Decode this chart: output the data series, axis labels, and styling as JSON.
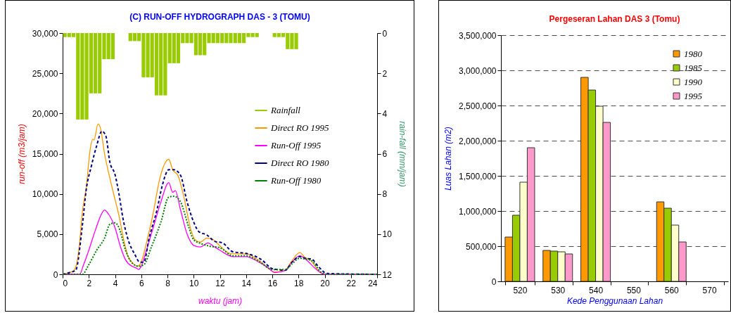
{
  "chart_data": [
    {
      "type": "line",
      "title": "(C)  RUN-OFF HYDROGRAPH DAS - 3 (TOMU)",
      "xlabel": "waktu (jam)",
      "ylabel": "run-off (m3/jam)",
      "y2label": "rain-fall (mm/jam)",
      "xlim": [
        0,
        24
      ],
      "xticks": [
        0,
        2,
        4,
        6,
        8,
        10,
        12,
        14,
        16,
        18,
        20,
        22,
        24
      ],
      "ylim": [
        0,
        30000
      ],
      "yticks": [
        {
          "value": 0,
          "label": "0"
        },
        {
          "value": 5000,
          "label": "5,000"
        },
        {
          "value": 10000,
          "label": "10,000"
        },
        {
          "value": 15000,
          "label": "15,000"
        },
        {
          "value": 20000,
          "label": "20,000"
        },
        {
          "value": 25000,
          "label": "25,000"
        },
        {
          "value": 30000,
          "label": "30,000"
        }
      ],
      "y2lim": [
        12,
        0
      ],
      "y2ticks": [
        0,
        2,
        4,
        6,
        8,
        10,
        12
      ],
      "legend": "right",
      "marker": "none",
      "series": [
        {
          "name": "Rainfall",
          "type": "bar",
          "axis": "y2",
          "color": "#99cc00",
          "x": [
            0.17,
            0.5,
            0.83,
            1.17,
            1.5,
            1.83,
            2.17,
            2.5,
            2.83,
            3.17,
            3.5,
            3.83,
            5.17,
            5.5,
            5.83,
            6.17,
            6.5,
            6.83,
            7.17,
            7.5,
            7.83,
            8.17,
            8.5,
            8.83,
            9.17,
            9.5,
            9.83,
            10.17,
            10.5,
            10.83,
            11.17,
            11.5,
            11.83,
            12.17,
            12.5,
            12.83,
            13.17,
            13.5,
            13.83,
            14.17,
            14.5,
            14.83,
            16.17,
            16.5,
            16.83,
            17.17,
            17.5,
            17.83
          ],
          "values": [
            0.2,
            0.2,
            0.2,
            4.3,
            4.3,
            4.3,
            3.0,
            3.0,
            3.0,
            1.3,
            1.3,
            1.3,
            0.4,
            0.4,
            0.4,
            2.2,
            2.2,
            2.2,
            3.1,
            3.1,
            3.1,
            1.5,
            1.5,
            1.5,
            0.5,
            0.5,
            0.5,
            1.1,
            1.1,
            1.1,
            0.5,
            0.5,
            0.5,
            0.5,
            0.5,
            0.5,
            0.5,
            0.5,
            0.5,
            0.2,
            0.2,
            0.2,
            0.2,
            0.2,
            0.2,
            0.8,
            0.8,
            0.8
          ]
        },
        {
          "name": "Direct RO 1995",
          "color": "#ff9900",
          "line_style": "solid",
          "x": [
            0,
            0.8,
            1.1,
            1.3,
            1.5,
            1.8,
            2.1,
            2.3,
            2.4,
            2.7,
            2.9,
            3.2,
            3.6,
            4.0,
            4.3,
            4.7,
            5.0,
            5.3,
            5.7,
            5.9,
            6.5,
            6.9,
            7.4,
            8.1,
            8.4,
            8.8,
            9.2,
            9.8,
            10.1,
            10.5,
            11.0,
            11.4,
            11.7,
            12.8,
            14.1,
            15.0,
            16.2,
            16.9,
            17.5,
            18.1,
            18.5,
            18.9,
            19.6,
            20.0,
            24
          ],
          "values": [
            0,
            400,
            1500,
            4000,
            7700,
            10700,
            15500,
            16800,
            16700,
            18700,
            18100,
            15000,
            12000,
            9300,
            7300,
            4000,
            2200,
            1500,
            1000,
            1200,
            4600,
            7500,
            11800,
            14300,
            13000,
            12300,
            10000,
            5500,
            4300,
            4000,
            4500,
            4400,
            4000,
            2600,
            2500,
            1700,
            300,
            400,
            1700,
            2700,
            2100,
            1800,
            300,
            0,
            0
          ]
        },
        {
          "name": "Run-Off 1995",
          "color": "#ff00ff",
          "line_style": "solid",
          "x": [
            0,
            1.3,
            1.6,
            2.0,
            2.5,
            3.0,
            3.2,
            3.5,
            4.0,
            4.4,
            4.8,
            5.3,
            5.6,
            5.8,
            6.0,
            6.4,
            7.0,
            7.5,
            8.1,
            8.4,
            8.6,
            9.0,
            9.5,
            10.0,
            10.5,
            11.1,
            11.5,
            12.0,
            13.0,
            14.0,
            15.0,
            15.7,
            16.2,
            17.0,
            17.5,
            18.1,
            18.6,
            19.3,
            20.0,
            24
          ],
          "values": [
            0,
            0,
            1200,
            3000,
            5500,
            7600,
            8000,
            7500,
            5800,
            3500,
            1800,
            1000,
            800,
            600,
            1000,
            3000,
            6300,
            9000,
            11400,
            10200,
            10400,
            8000,
            5000,
            3600,
            3400,
            3900,
            3500,
            3000,
            2200,
            2200,
            1500,
            800,
            200,
            500,
            1500,
            2300,
            1800,
            700,
            0,
            0
          ]
        },
        {
          "name": "Direct RO 1980",
          "color": "#000080",
          "line_style": "dashed",
          "x": [
            0,
            0.5,
            1.0,
            1.5,
            1.8,
            2.2,
            2.6,
            3.0,
            3.3,
            3.6,
            4.0,
            4.3,
            4.6,
            5.0,
            5.5,
            5.9,
            6.2,
            6.6,
            7.2,
            7.6,
            8.1,
            8.5,
            9.0,
            9.5,
            10.0,
            10.4,
            11.0,
            11.6,
            12.2,
            13.0,
            14.0,
            15.2,
            16.0,
            17.0,
            17.5,
            18.1,
            18.5,
            19.0,
            19.5,
            20.2,
            24
          ],
          "values": [
            0,
            200,
            500,
            6000,
            10500,
            13500,
            16000,
            17800,
            17200,
            14000,
            12400,
            10000,
            7000,
            4300,
            2500,
            1500,
            1500,
            4500,
            8000,
            11000,
            13000,
            13000,
            12300,
            9000,
            6500,
            5300,
            4900,
            4100,
            3900,
            2800,
            2600,
            1800,
            700,
            500,
            1500,
            2200,
            2000,
            1900,
            1000,
            100,
            0
          ]
        },
        {
          "name": "Run-Off 1980",
          "color": "#008000",
          "line_style": "dotted",
          "x": [
            0,
            1.5,
            2.0,
            2.6,
            3.2,
            3.6,
            4.0,
            4.3,
            4.8,
            5.3,
            5.8,
            6.2,
            6.8,
            7.5,
            8.1,
            8.5,
            9.0,
            9.6,
            10.0,
            10.6,
            11.2,
            12.0,
            13.0,
            14.0,
            15.0,
            16.0,
            17.0,
            17.5,
            18.1,
            18.5,
            19.0,
            19.7,
            20.2,
            24
          ],
          "values": [
            0,
            0,
            1200,
            3000,
            4500,
            6200,
            6400,
            5800,
            3000,
            1400,
            1000,
            1200,
            3500,
            6500,
            9600,
            9700,
            9000,
            6000,
            4300,
            3800,
            3500,
            3300,
            2300,
            2300,
            1600,
            600,
            600,
            1300,
            2000,
            1900,
            1700,
            300,
            0,
            0
          ]
        }
      ]
    },
    {
      "type": "bar",
      "title": "Pergeseran Lahan DAS 3 (Tomu)",
      "xlabel": "Kede Penggunaan Lahan",
      "ylabel": "Luas Lahan (m2)",
      "categories": [
        "520",
        "530",
        "540",
        "550",
        "560",
        "570"
      ],
      "ylim": [
        0,
        3500000
      ],
      "yticks": [
        {
          "value": 0,
          "label": "0"
        },
        {
          "value": 500000,
          "label": "500,000"
        },
        {
          "value": 1000000,
          "label": "1,000,000"
        },
        {
          "value": 1500000,
          "label": "1,500,000"
        },
        {
          "value": 2000000,
          "label": "2,000,000"
        },
        {
          "value": 2500000,
          "label": "2,500,000"
        },
        {
          "value": 3000000,
          "label": "3,000,000"
        },
        {
          "value": 3500000,
          "label": "3,500,000"
        }
      ],
      "grid": "y",
      "legend": "top right",
      "series": [
        {
          "name": "1980",
          "color": "#ff9900",
          "values": [
            630000,
            440000,
            2900000,
            null,
            1130000,
            null
          ]
        },
        {
          "name": "1985",
          "color": "#99cc00",
          "values": [
            940000,
            430000,
            2720000,
            null,
            1040000,
            null
          ]
        },
        {
          "name": "1990",
          "color": "#ffffcc",
          "values": [
            1410000,
            420000,
            2490000,
            null,
            800000,
            null
          ]
        },
        {
          "name": "1995",
          "color": "#ff99cc",
          "values": [
            1900000,
            390000,
            2260000,
            null,
            560000,
            null
          ]
        }
      ]
    }
  ]
}
